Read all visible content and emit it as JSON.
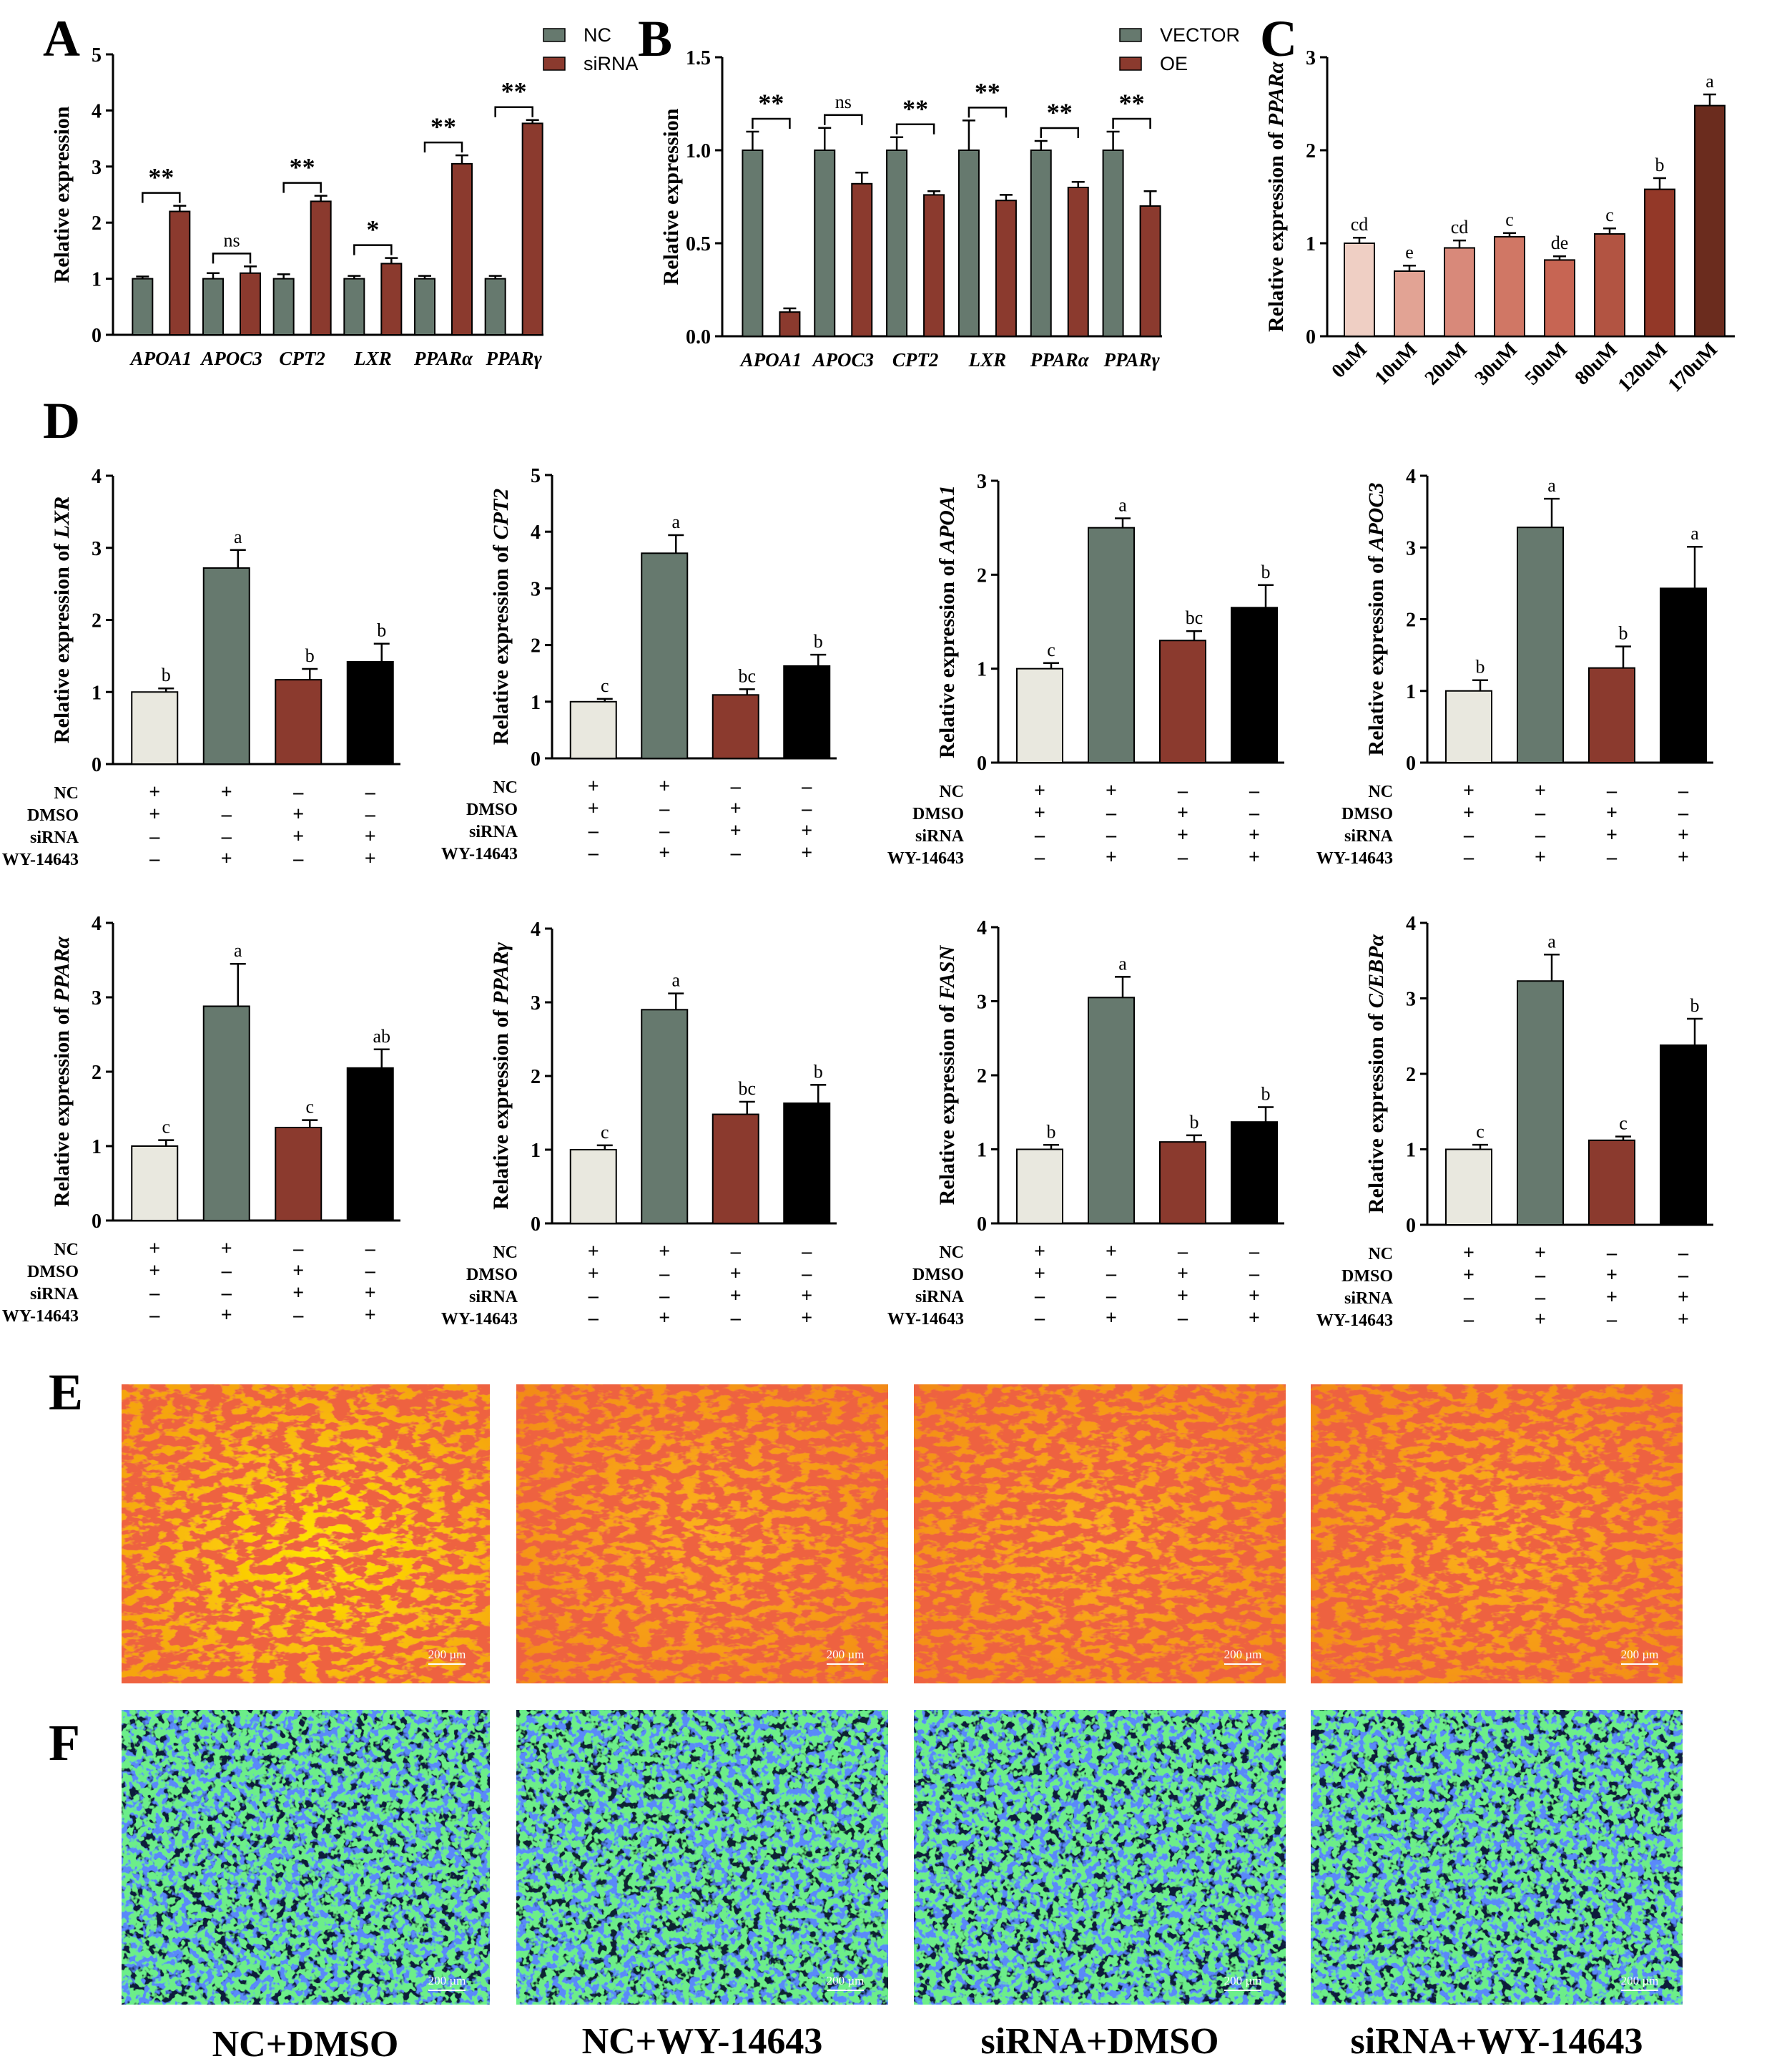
{
  "panel_letters": [
    "A",
    "B",
    "C",
    "D",
    "E",
    "F"
  ],
  "colors": {
    "green": "#66796e",
    "red": "#8b3a2e",
    "light": "#e9e8df",
    "black": "#000000",
    "panelC": [
      "#efcfc4",
      "#e2a394",
      "#d8897a",
      "#d07765",
      "#c76553",
      "#b25442",
      "#933828",
      "#6b2c1e"
    ]
  },
  "treatment_rows": [
    {
      "label": "NC",
      "signs": [
        "+",
        "+",
        "–",
        "–"
      ]
    },
    {
      "label": "DMSO",
      "signs": [
        "+",
        "–",
        "+",
        "–"
      ]
    },
    {
      "label": "siRNA",
      "signs": [
        "–",
        "–",
        "+",
        "+"
      ]
    },
    {
      "label": "WY-14643",
      "signs": [
        "–",
        "+",
        "–",
        "+"
      ]
    }
  ],
  "image_captions": [
    "NC+DMSO",
    "NC+WY-14643",
    "siRNA+DMSO",
    "siRNA+WY-14643"
  ],
  "scale_bar_label": "200 µm",
  "chart_data": [
    {
      "panel": "A",
      "type": "bar",
      "ylabel": "Relative expression",
      "ylim": [
        0,
        5
      ],
      "yticks": [
        "0",
        "1",
        "2",
        "3",
        "4",
        "5"
      ],
      "categories": [
        "APOA1",
        "APOC3",
        "CPT2",
        "LXR",
        "PPARα",
        "PPARγ"
      ],
      "legend": [
        "NC",
        "siRNA"
      ],
      "series": [
        {
          "name": "NC",
          "values": [
            1.0,
            1.0,
            1.0,
            1.0,
            1.0,
            1.0
          ],
          "errors": [
            0.04,
            0.1,
            0.08,
            0.05,
            0.05,
            0.05
          ]
        },
        {
          "name": "siRNA",
          "values": [
            2.2,
            1.1,
            2.38,
            1.27,
            3.05,
            3.77
          ],
          "errors": [
            0.1,
            0.12,
            0.1,
            0.1,
            0.15,
            0.06
          ]
        }
      ],
      "significance": [
        "**",
        "ns",
        "**",
        "*",
        "**",
        "**"
      ]
    },
    {
      "panel": "B",
      "type": "bar",
      "ylabel": "Relative expression",
      "ylim": [
        0,
        1.5
      ],
      "yticks": [
        "0.0",
        "0.5",
        "1.0",
        "1.5"
      ],
      "categories": [
        "APOA1",
        "APOC3",
        "CPT2",
        "LXR",
        "PPARα",
        "PPARγ"
      ],
      "legend": [
        "VECTOR",
        "OE"
      ],
      "series": [
        {
          "name": "VECTOR",
          "values": [
            1.0,
            1.0,
            1.0,
            1.0,
            1.0,
            1.0
          ],
          "errors": [
            0.1,
            0.12,
            0.07,
            0.16,
            0.05,
            0.1
          ]
        },
        {
          "name": "OE",
          "values": [
            0.13,
            0.82,
            0.76,
            0.73,
            0.8,
            0.7
          ],
          "errors": [
            0.02,
            0.06,
            0.02,
            0.03,
            0.03,
            0.08
          ]
        }
      ],
      "significance": [
        "**",
        "ns",
        "**",
        "**",
        "**",
        "**"
      ]
    },
    {
      "panel": "C",
      "type": "bar",
      "ylabel": "Relative expression of PPARα",
      "ylim": [
        0,
        3
      ],
      "yticks": [
        "0",
        "1",
        "2",
        "3"
      ],
      "categories": [
        "0uM",
        "10uM",
        "20uM",
        "30uM",
        "50uM",
        "80uM",
        "120uM",
        "170uM"
      ],
      "values": [
        1.0,
        0.7,
        0.95,
        1.07,
        0.82,
        1.1,
        1.58,
        2.48
      ],
      "errors": [
        0.06,
        0.06,
        0.08,
        0.04,
        0.04,
        0.06,
        0.12,
        0.12
      ],
      "letters": [
        "cd",
        "e",
        "cd",
        "c",
        "de",
        "c",
        "b",
        "a"
      ]
    },
    {
      "panel": "D1",
      "type": "bar",
      "ylabel": "Relative expression of LXR",
      "ylim": [
        0,
        4
      ],
      "yticks": [
        "0",
        "1",
        "2",
        "3",
        "4"
      ],
      "values": [
        1.0,
        2.72,
        1.17,
        1.42
      ],
      "errors": [
        0.05,
        0.25,
        0.15,
        0.25
      ],
      "letters": [
        "b",
        "a",
        "b",
        "b"
      ]
    },
    {
      "panel": "D2",
      "type": "bar",
      "ylabel": "Relative expression of CPT2",
      "ylim": [
        0,
        5
      ],
      "yticks": [
        "0",
        "1",
        "2",
        "3",
        "4",
        "5"
      ],
      "values": [
        1.0,
        3.62,
        1.12,
        1.63
      ],
      "errors": [
        0.05,
        0.32,
        0.1,
        0.2
      ],
      "letters": [
        "c",
        "a",
        "bc",
        "b"
      ]
    },
    {
      "panel": "D3",
      "type": "bar",
      "ylabel": "Relative expression of APOA1",
      "ylim": [
        0,
        3
      ],
      "yticks": [
        "0",
        "1",
        "2",
        "3"
      ],
      "values": [
        1.0,
        2.5,
        1.3,
        1.65
      ],
      "errors": [
        0.06,
        0.1,
        0.1,
        0.24
      ],
      "letters": [
        "c",
        "a",
        "bc",
        "b"
      ]
    },
    {
      "panel": "D4",
      "type": "bar",
      "ylabel": "Relative expression of APOC3",
      "ylim": [
        0,
        4
      ],
      "yticks": [
        "0",
        "1",
        "2",
        "3",
        "4"
      ],
      "values": [
        1.0,
        3.28,
        1.32,
        2.43
      ],
      "errors": [
        0.15,
        0.4,
        0.3,
        0.58
      ],
      "letters": [
        "b",
        "a",
        "b",
        "a"
      ]
    },
    {
      "panel": "D5",
      "type": "bar",
      "ylabel": "Relative expression of PPARα",
      "ylim": [
        0,
        4
      ],
      "yticks": [
        "0",
        "1",
        "2",
        "3",
        "4"
      ],
      "values": [
        1.0,
        2.88,
        1.25,
        2.05
      ],
      "errors": [
        0.08,
        0.57,
        0.1,
        0.25
      ],
      "letters": [
        "c",
        "a",
        "c",
        "ab"
      ]
    },
    {
      "panel": "D6",
      "type": "bar",
      "ylabel": "Relative expression of PPARγ",
      "ylim": [
        0,
        4
      ],
      "yticks": [
        "0",
        "1",
        "2",
        "3",
        "4"
      ],
      "values": [
        1.0,
        2.9,
        1.48,
        1.63
      ],
      "errors": [
        0.06,
        0.22,
        0.17,
        0.25
      ],
      "letters": [
        "c",
        "a",
        "bc",
        "b"
      ]
    },
    {
      "panel": "D7",
      "type": "bar",
      "ylabel": "Relative expression of FASN",
      "ylim": [
        0,
        4
      ],
      "yticks": [
        "0",
        "1",
        "2",
        "3",
        "4"
      ],
      "values": [
        1.0,
        3.05,
        1.1,
        1.37
      ],
      "errors": [
        0.06,
        0.28,
        0.09,
        0.2
      ],
      "letters": [
        "b",
        "a",
        "b",
        "b"
      ]
    },
    {
      "panel": "D8",
      "type": "bar",
      "ylabel": "Relative expression of C/EBPα",
      "ylim": [
        0,
        4
      ],
      "yticks": [
        "0",
        "1",
        "2",
        "3",
        "4"
      ],
      "values": [
        1.0,
        3.23,
        1.12,
        2.38
      ],
      "errors": [
        0.06,
        0.35,
        0.05,
        0.35
      ],
      "letters": [
        "c",
        "a",
        "c",
        "b"
      ]
    }
  ]
}
